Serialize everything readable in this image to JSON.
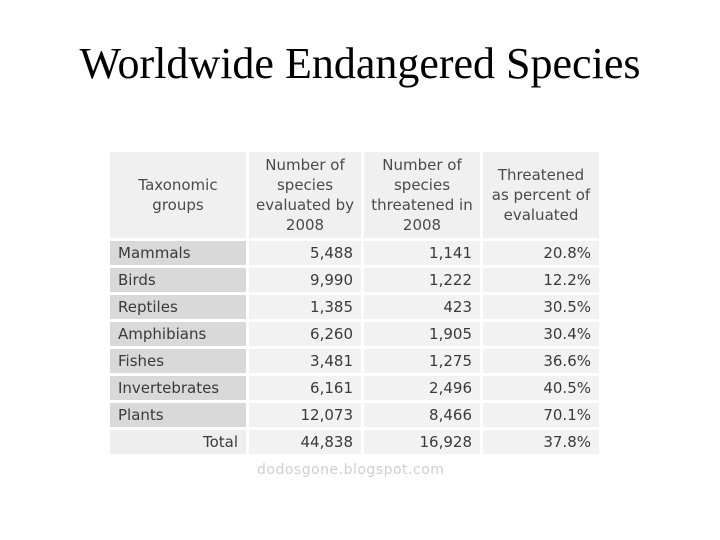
{
  "title": "Worldwide Endangered Species",
  "table": {
    "headers": [
      "Taxonomic groups",
      "Number of species evaluated by 2008",
      "Number of species threatened in 2008",
      "Threatened as percent of evaluated"
    ],
    "rows": [
      {
        "group": "Mammals",
        "evaluated": "5,488",
        "threatened": "1,141",
        "percent": "20.8%"
      },
      {
        "group": "Birds",
        "evaluated": "9,990",
        "threatened": "1,222",
        "percent": "12.2%"
      },
      {
        "group": "Reptiles",
        "evaluated": "1,385",
        "threatened": "423",
        "percent": "30.5%"
      },
      {
        "group": "Amphibians",
        "evaluated": "6,260",
        "threatened": "1,905",
        "percent": "30.4%"
      },
      {
        "group": "Fishes",
        "evaluated": "3,481",
        "threatened": "1,275",
        "percent": "36.6%"
      },
      {
        "group": "Invertebrates",
        "evaluated": "6,161",
        "threatened": "2,496",
        "percent": "40.5%"
      },
      {
        "group": "Plants",
        "evaluated": "12,073",
        "threatened": "8,466",
        "percent": "70.1%"
      }
    ],
    "total": {
      "group": "Total",
      "evaluated": "44,838",
      "threatened": "16,928",
      "percent": "37.8%"
    }
  },
  "watermark": "dodosgone.blogspot.com"
}
